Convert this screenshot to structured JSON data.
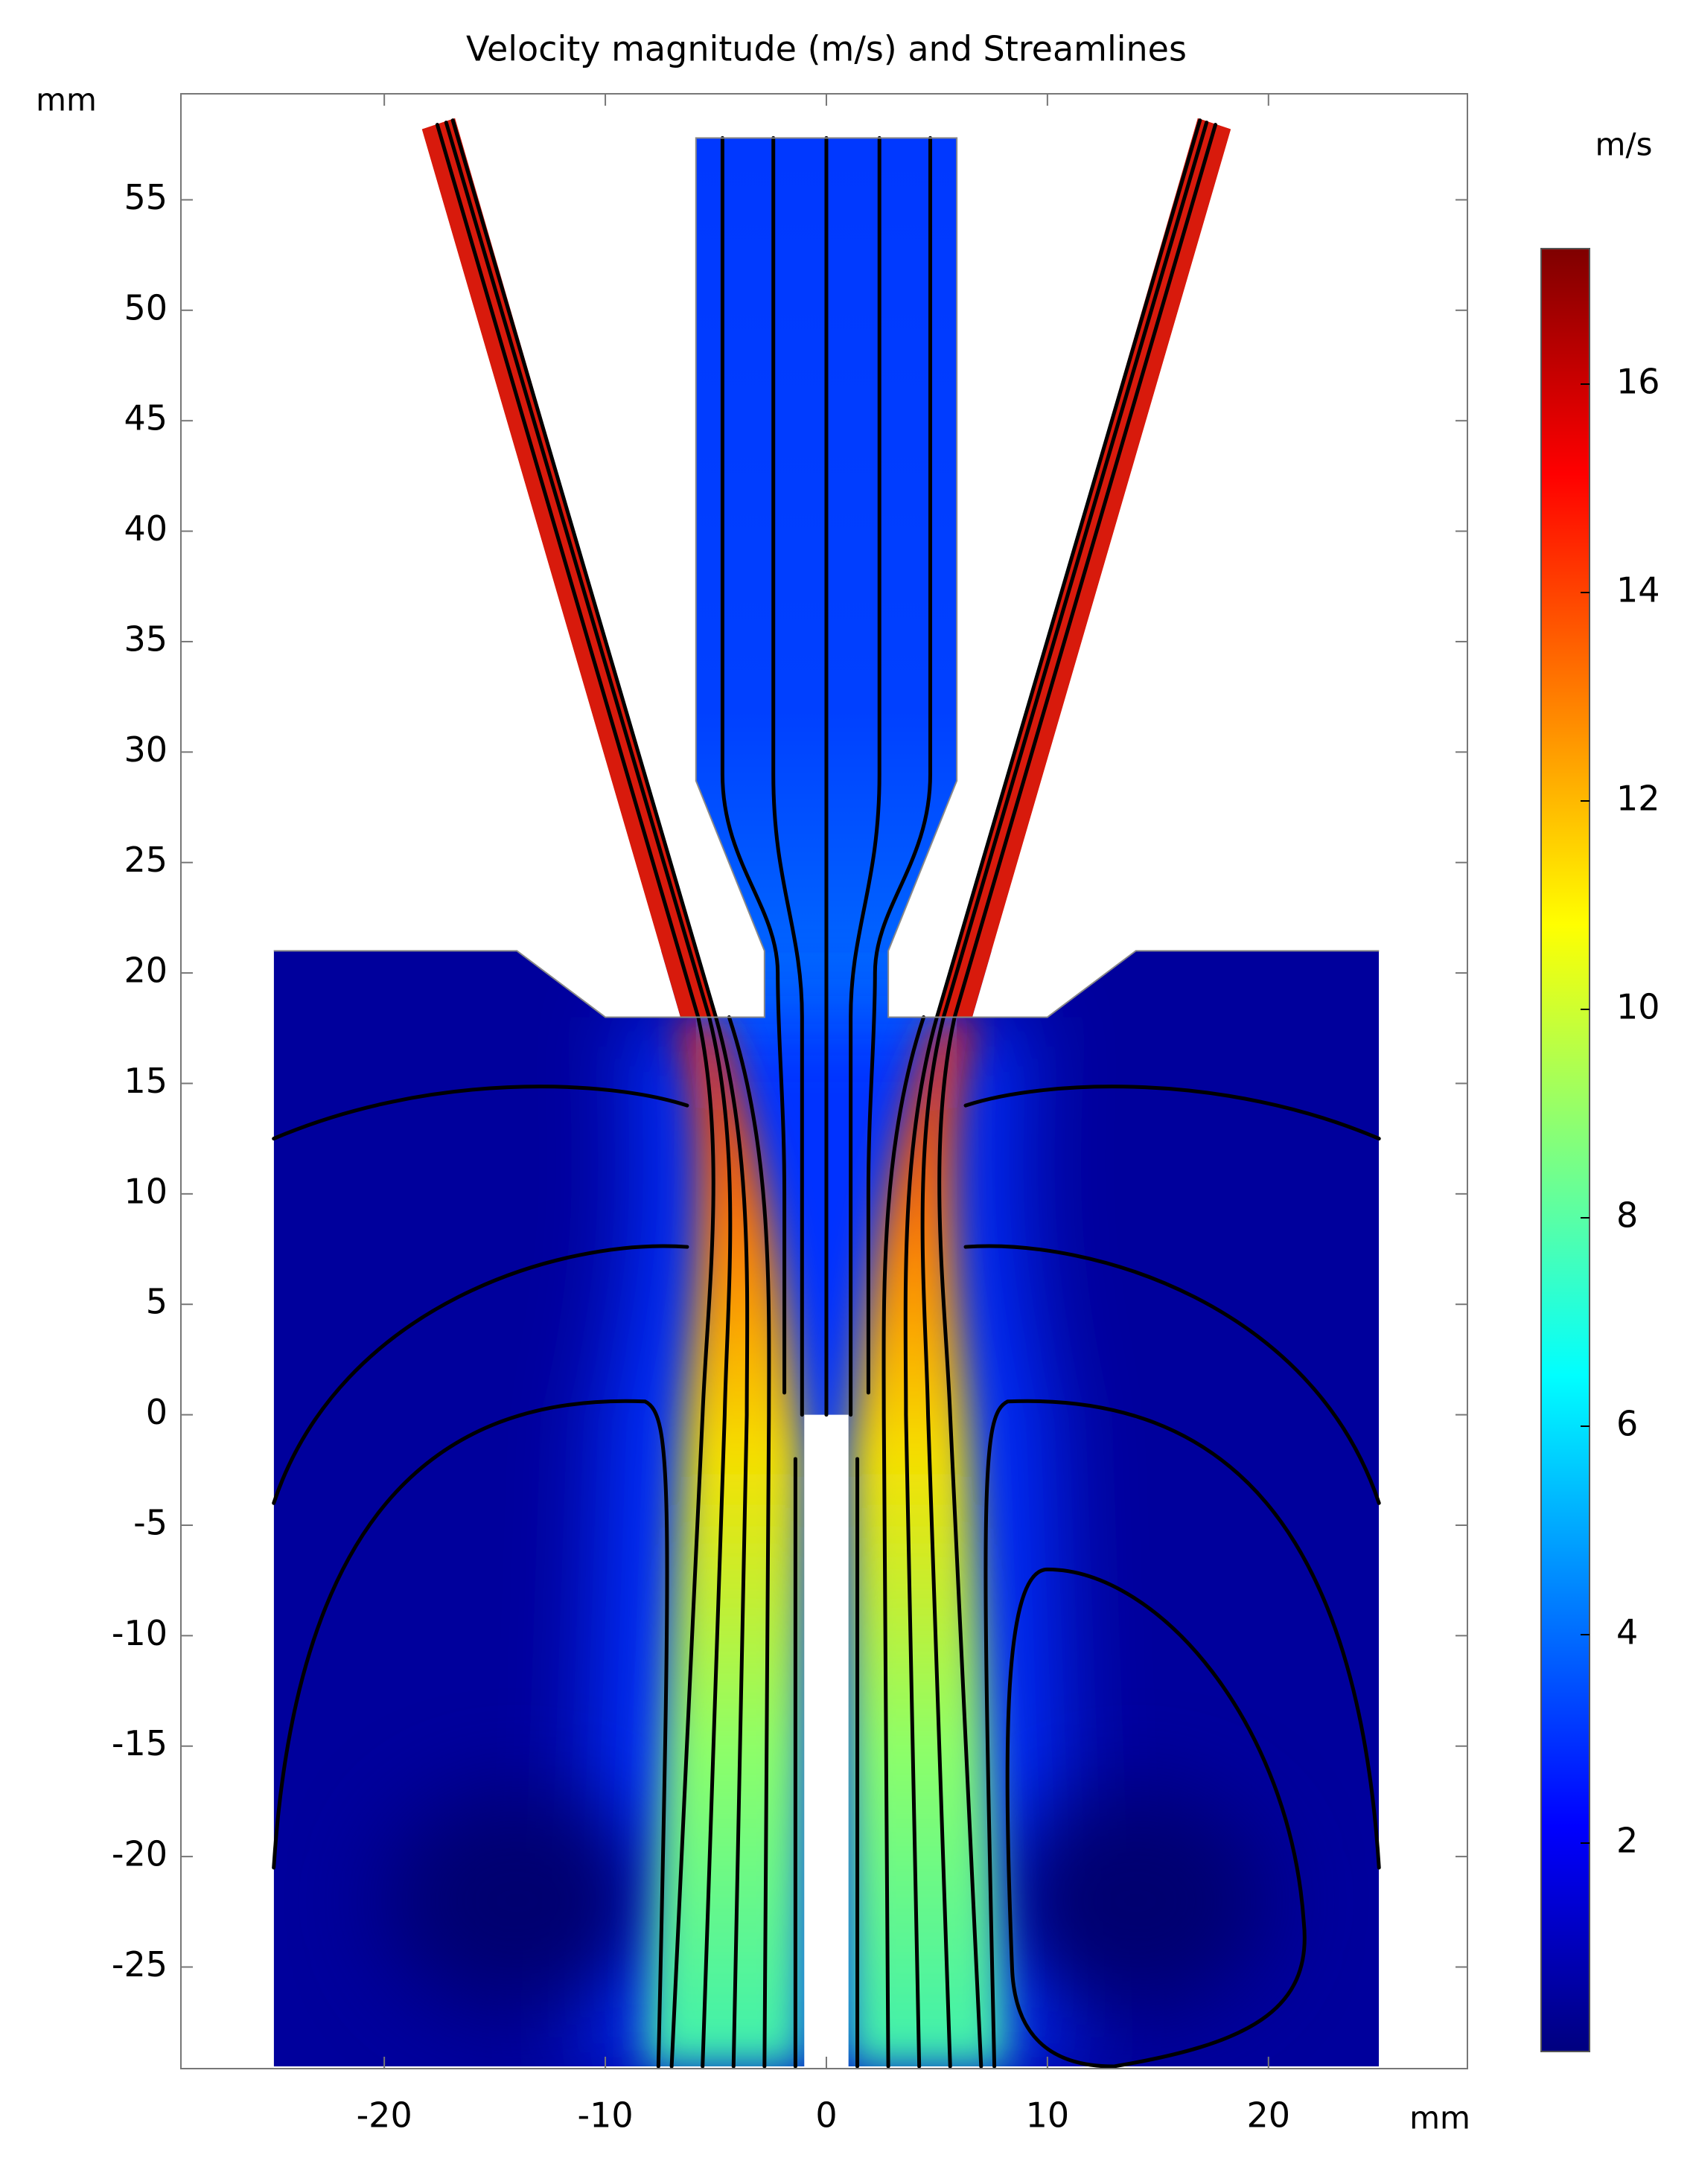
{
  "chart_data": {
    "type": "surface",
    "title": "Velocity magnitude (m/s) and Streamlines",
    "x_label": "mm",
    "y_label": "mm",
    "xlim": [
      -29.2,
      29
    ],
    "ylim": [
      -29.6,
      59.8
    ],
    "xticks": [
      -20,
      -10,
      0,
      10,
      20
    ],
    "yticks": [
      -25,
      -20,
      -15,
      -10,
      -5,
      0,
      5,
      10,
      15,
      20,
      25,
      30,
      35,
      40,
      45,
      50,
      55
    ],
    "colorbar": {
      "label": "m/s",
      "colormap": "jet",
      "clim": [
        0,
        17.3
      ],
      "ticks": [
        2,
        4,
        6,
        8,
        10,
        12,
        14,
        16
      ]
    }
  }
}
